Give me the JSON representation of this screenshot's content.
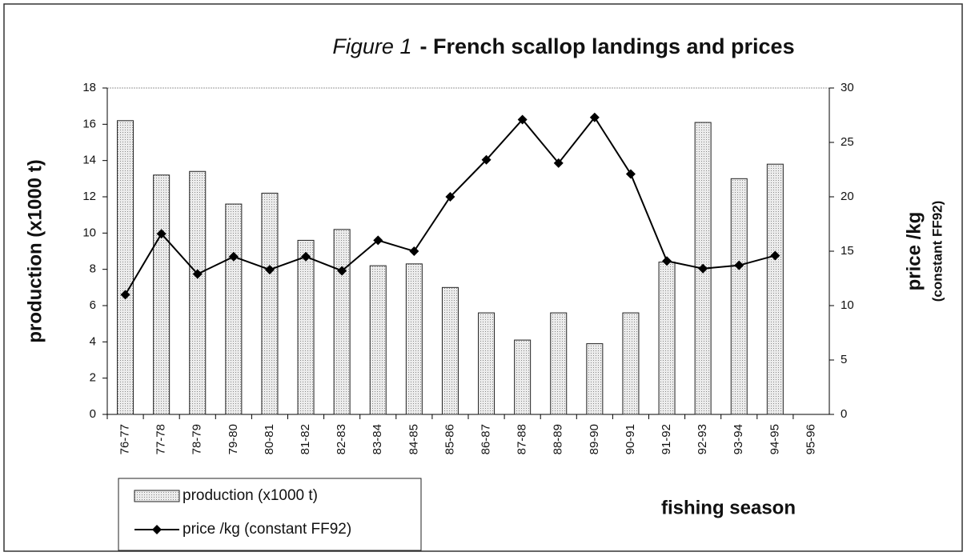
{
  "chart_data": {
    "type": "bar",
    "title_parts": [
      "Figure 1",
      "- French scallop landings and prices"
    ],
    "ylabel": "production (x1000 t)",
    "y2label": "price /kg",
    "y2label_sub": "(constant FF92)",
    "xlabel": "fishing season",
    "categories": [
      "76-77",
      "77-78",
      "78-79",
      "79-80",
      "80-81",
      "81-82",
      "82-83",
      "83-84",
      "84-85",
      "85-86",
      "86-87",
      "87-88",
      "88-89",
      "89-90",
      "90-91",
      "91-92",
      "92-93",
      "93-94",
      "94-95",
      "95-96"
    ],
    "series": [
      {
        "name": "production (x1000 t)",
        "type": "bar",
        "color": "#dcdcdc",
        "values": [
          16.2,
          13.2,
          13.4,
          11.6,
          12.2,
          9.6,
          10.2,
          8.2,
          8.3,
          7.0,
          5.6,
          4.1,
          5.6,
          3.9,
          5.6,
          8.4,
          16.1,
          13.0,
          13.8,
          null
        ]
      },
      {
        "name": "price /kg (constant FF92)",
        "type": "line",
        "axis": "y2",
        "color": "#000000",
        "values": [
          11.0,
          16.6,
          12.9,
          14.5,
          13.3,
          14.5,
          13.2,
          16.0,
          15.0,
          20.0,
          23.4,
          27.1,
          23.1,
          27.3,
          22.1,
          14.1,
          13.4,
          13.7,
          14.6,
          null
        ]
      }
    ],
    "ylim": [
      0,
      18
    ],
    "yticks": [
      0,
      2,
      4,
      6,
      8,
      10,
      12,
      14,
      16,
      18
    ],
    "y2lim": [
      0,
      30
    ],
    "y2ticks": [
      0,
      5,
      10,
      15,
      20,
      25,
      30
    ]
  }
}
